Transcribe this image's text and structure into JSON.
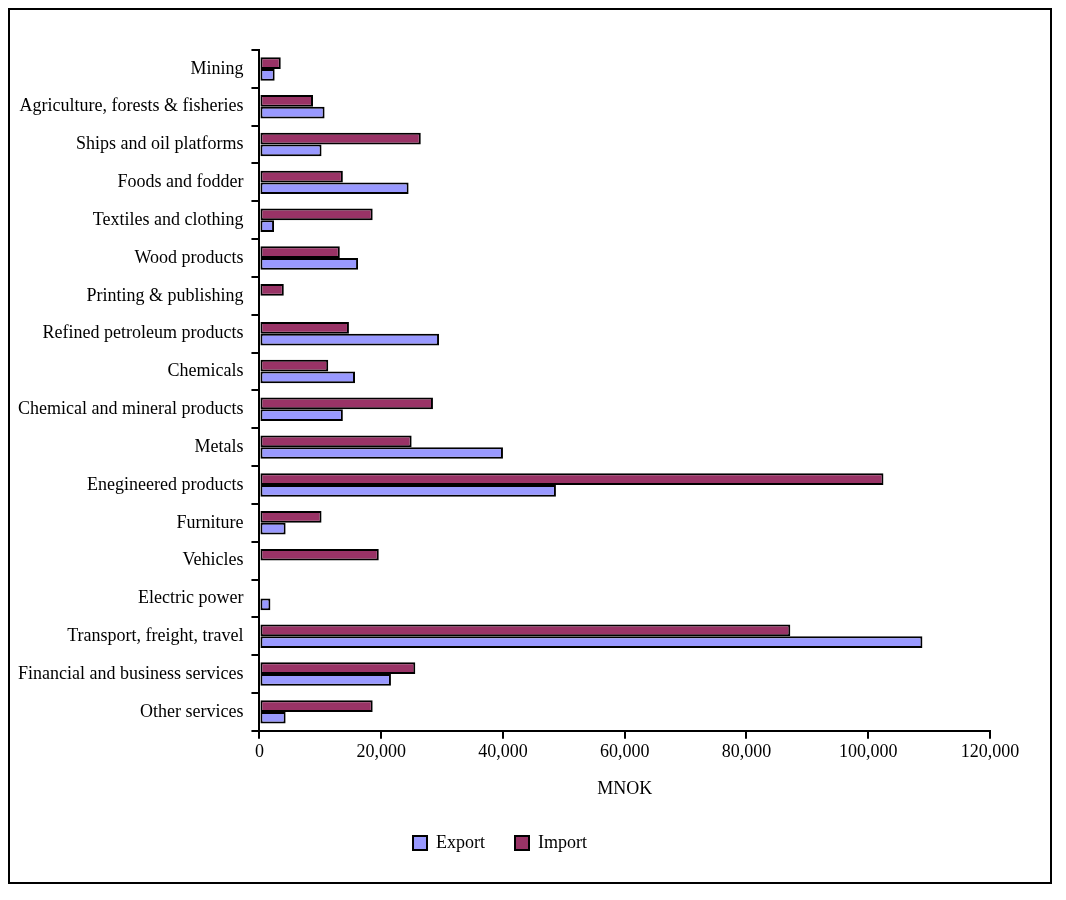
{
  "chart_data": {
    "type": "bar",
    "orientation": "horizontal",
    "xlabel": "MNOK",
    "categories": [
      "Mining",
      "Agriculture, forests & fisheries",
      "Ships and oil platforms",
      "Foods and fodder",
      "Textiles and clothing",
      "Wood products",
      "Printing & publishing",
      "Refined petroleum products",
      "Chemicals",
      "Chemical and mineral products",
      "Metals",
      "Enegineered products",
      "Furniture",
      "Vehicles",
      "Electric power",
      "Transport, freight, travel",
      "Financial and business services",
      "Other services"
    ],
    "series": [
      {
        "name": "Export",
        "color": "#9999ff",
        "values": [
          2500,
          10700,
          10200,
          24500,
          2400,
          16200,
          0,
          29500,
          15700,
          13700,
          40000,
          48700,
          4300,
          0,
          1800,
          108900,
          21600,
          4300
        ]
      },
      {
        "name": "Import",
        "color": "#993366",
        "values": [
          3500,
          8800,
          26500,
          13700,
          18600,
          13200,
          4000,
          14700,
          11300,
          28500,
          25000,
          102500,
          10200,
          19600,
          0,
          87200,
          25600,
          18600
        ]
      }
    ],
    "xlim": [
      0,
      120000
    ],
    "xticks": [
      {
        "value": 0,
        "label": "0"
      },
      {
        "value": 20000,
        "label": "20,000"
      },
      {
        "value": 40000,
        "label": "40,000"
      },
      {
        "value": 60000,
        "label": "60,000"
      },
      {
        "value": 80000,
        "label": "80,000"
      },
      {
        "value": 100000,
        "label": "100,000"
      },
      {
        "value": 120000,
        "label": "120,000"
      }
    ],
    "grid": false,
    "legend": "bottom"
  }
}
